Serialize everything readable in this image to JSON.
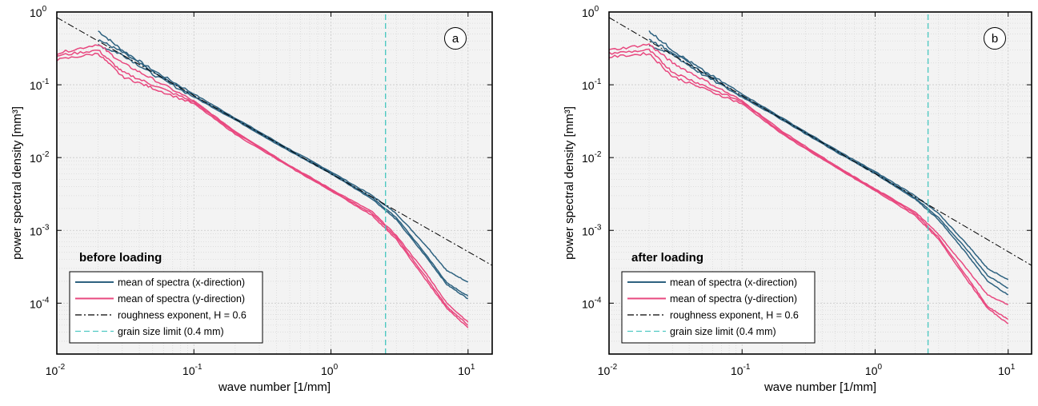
{
  "chart_data": [
    {
      "type": "line",
      "panel_label": "a",
      "condition_label": "before loading",
      "xlabel": "wave number [1/mm]",
      "ylabel": "power spectral density [mm³]",
      "xscale": "log",
      "yscale": "log",
      "xlim": [
        0.01,
        15
      ],
      "ylim": [
        2e-05,
        1
      ],
      "x_tick_labels": [
        {
          "value": 0.01,
          "base": "10",
          "exp": "-2"
        },
        {
          "value": 0.1,
          "base": "10",
          "exp": "-1"
        },
        {
          "value": 1,
          "base": "10",
          "exp": "0"
        },
        {
          "value": 10,
          "base": "10",
          "exp": "1"
        }
      ],
      "y_tick_labels": [
        {
          "value": 0.0001,
          "base": "10",
          "exp": "-4"
        },
        {
          "value": 0.001,
          "base": "10",
          "exp": "-3"
        },
        {
          "value": 0.01,
          "base": "10",
          "exp": "-2"
        },
        {
          "value": 0.1,
          "base": "10",
          "exp": "-1"
        },
        {
          "value": 1,
          "base": "10",
          "exp": "0"
        }
      ],
      "grid": true,
      "legend_position": "bottom-left",
      "legend": [
        {
          "label": "mean of spectra (x-direction)",
          "style": "solid",
          "color": "#2e6280"
        },
        {
          "label": "mean of spectra (y-direction)",
          "style": "solid",
          "color": "#e8487f"
        },
        {
          "label": "roughness exponent, H = 0.6",
          "style": "dash-dot",
          "color": "#000000"
        },
        {
          "label": "grain size limit (0.4 mm)",
          "style": "dashed",
          "color": "#4fc9c2"
        }
      ],
      "series": [
        {
          "group": "x-direction",
          "color": "#2e6280",
          "x": [
            0.02,
            0.03,
            0.05,
            0.1,
            0.2,
            0.5,
            1,
            2,
            3,
            5,
            7,
            10
          ],
          "y": [
            0.55,
            0.3,
            0.16,
            0.075,
            0.035,
            0.013,
            0.0064,
            0.003,
            0.0017,
            0.0006,
            0.00028,
            0.000195
          ]
        },
        {
          "group": "x-direction",
          "color": "#2e6280",
          "x": [
            0.02,
            0.03,
            0.05,
            0.1,
            0.2,
            0.5,
            1,
            2,
            3,
            5,
            7,
            10
          ],
          "y": [
            0.42,
            0.28,
            0.15,
            0.07,
            0.034,
            0.0125,
            0.0062,
            0.0028,
            0.0015,
            0.00045,
            0.00019,
            0.000125
          ]
        },
        {
          "group": "x-direction",
          "color": "#2e6280",
          "x": [
            0.02,
            0.03,
            0.05,
            0.1,
            0.2,
            0.5,
            1,
            2,
            3,
            5,
            7,
            10
          ],
          "y": [
            0.35,
            0.26,
            0.14,
            0.068,
            0.033,
            0.0122,
            0.006,
            0.0027,
            0.0014,
            0.00042,
            0.00018,
            0.000115
          ]
        },
        {
          "group": "y-direction",
          "color": "#e8487f",
          "x": [
            0.01,
            0.02,
            0.03,
            0.05,
            0.1,
            0.2,
            0.5,
            1,
            2,
            3,
            5,
            7,
            10
          ],
          "y": [
            0.27,
            0.36,
            0.2,
            0.12,
            0.06,
            0.023,
            0.0078,
            0.0037,
            0.0018,
            0.00085,
            0.00025,
            0.0001,
            5.5e-05
          ]
        },
        {
          "group": "y-direction",
          "color": "#e8487f",
          "x": [
            0.01,
            0.02,
            0.03,
            0.05,
            0.1,
            0.2,
            0.5,
            1,
            2,
            3,
            5,
            7,
            10
          ],
          "y": [
            0.25,
            0.3,
            0.15,
            0.1,
            0.058,
            0.022,
            0.0076,
            0.0036,
            0.0017,
            0.0008,
            0.00022,
            9e-05,
            5e-05
          ]
        },
        {
          "group": "y-direction",
          "color": "#e8487f",
          "x": [
            0.01,
            0.02,
            0.03,
            0.05,
            0.1,
            0.2,
            0.5,
            1,
            2,
            3,
            5,
            7,
            10
          ],
          "y": [
            0.22,
            0.27,
            0.13,
            0.09,
            0.055,
            0.021,
            0.0074,
            0.0035,
            0.0016,
            0.00075,
            0.0002,
            8.5e-05,
            4.6e-05
          ]
        },
        {
          "group": "roughness",
          "color": "#000000",
          "x": [
            0.01,
            15
          ],
          "y": [
            0.84,
            0.00033
          ]
        },
        {
          "group": "grain-size",
          "color": "#4fc9c2",
          "x": [
            2.5,
            2.5
          ],
          "y": [
            2e-05,
            1
          ]
        }
      ]
    },
    {
      "type": "line",
      "panel_label": "b",
      "condition_label": "after loading",
      "xlabel": "wave number [1/mm]",
      "ylabel": "power spectral density [mm³]",
      "xscale": "log",
      "yscale": "log",
      "xlim": [
        0.01,
        15
      ],
      "ylim": [
        2e-05,
        1
      ],
      "x_tick_labels": [
        {
          "value": 0.01,
          "base": "10",
          "exp": "-2"
        },
        {
          "value": 0.1,
          "base": "10",
          "exp": "-1"
        },
        {
          "value": 1,
          "base": "10",
          "exp": "0"
        },
        {
          "value": 10,
          "base": "10",
          "exp": "1"
        }
      ],
      "y_tick_labels": [
        {
          "value": 0.0001,
          "base": "10",
          "exp": "-4"
        },
        {
          "value": 0.001,
          "base": "10",
          "exp": "-3"
        },
        {
          "value": 0.01,
          "base": "10",
          "exp": "-2"
        },
        {
          "value": 0.1,
          "base": "10",
          "exp": "-1"
        },
        {
          "value": 1,
          "base": "10",
          "exp": "0"
        }
      ],
      "grid": true,
      "legend_position": "bottom-left",
      "legend": [
        {
          "label": "mean of spectra (x-direction)",
          "style": "solid",
          "color": "#2e6280"
        },
        {
          "label": "mean of spectra (y-direction)",
          "style": "solid",
          "color": "#e8487f"
        },
        {
          "label": "roughness exponent, H = 0.6",
          "style": "dash-dot",
          "color": "#000000"
        },
        {
          "label": "grain size limit (0.4 mm)",
          "style": "dashed",
          "color": "#4fc9c2"
        }
      ],
      "series": [
        {
          "group": "x-direction",
          "color": "#2e6280",
          "x": [
            0.02,
            0.03,
            0.05,
            0.1,
            0.2,
            0.5,
            1,
            2,
            3,
            5,
            7,
            10
          ],
          "y": [
            0.55,
            0.3,
            0.16,
            0.075,
            0.035,
            0.013,
            0.0064,
            0.003,
            0.0017,
            0.00062,
            0.0003,
            0.00021
          ]
        },
        {
          "group": "x-direction",
          "color": "#2e6280",
          "x": [
            0.02,
            0.03,
            0.05,
            0.1,
            0.2,
            0.5,
            1,
            2,
            3,
            5,
            7,
            10
          ],
          "y": [
            0.42,
            0.28,
            0.15,
            0.07,
            0.034,
            0.0125,
            0.0062,
            0.0028,
            0.0015,
            0.00052,
            0.00024,
            0.00016
          ]
        },
        {
          "group": "x-direction",
          "color": "#2e6280",
          "x": [
            0.02,
            0.03,
            0.05,
            0.1,
            0.2,
            0.5,
            1,
            2,
            3,
            5,
            7,
            10
          ],
          "y": [
            0.35,
            0.26,
            0.14,
            0.068,
            0.033,
            0.0122,
            0.006,
            0.0027,
            0.0014,
            0.00045,
            0.0002,
            0.00013
          ]
        },
        {
          "group": "y-direction",
          "color": "#e8487f",
          "x": [
            0.01,
            0.02,
            0.03,
            0.05,
            0.1,
            0.2,
            0.5,
            1,
            2,
            3,
            5,
            7,
            10
          ],
          "y": [
            0.3,
            0.36,
            0.2,
            0.12,
            0.06,
            0.023,
            0.0078,
            0.0037,
            0.0018,
            0.00088,
            0.00028,
            0.00013,
            9.5e-05
          ]
        },
        {
          "group": "y-direction",
          "color": "#e8487f",
          "x": [
            0.01,
            0.02,
            0.03,
            0.05,
            0.1,
            0.2,
            0.5,
            1,
            2,
            3,
            5,
            7,
            10
          ],
          "y": [
            0.27,
            0.3,
            0.15,
            0.1,
            0.058,
            0.022,
            0.0076,
            0.0036,
            0.0017,
            0.0008,
            0.00022,
            9e-05,
            6e-05
          ]
        },
        {
          "group": "y-direction",
          "color": "#e8487f",
          "x": [
            0.01,
            0.02,
            0.03,
            0.05,
            0.1,
            0.2,
            0.5,
            1,
            2,
            3,
            5,
            7,
            10
          ],
          "y": [
            0.24,
            0.27,
            0.13,
            0.09,
            0.055,
            0.021,
            0.0074,
            0.0035,
            0.0016,
            0.00075,
            0.0002,
            8.5e-05,
            5.2e-05
          ]
        },
        {
          "group": "roughness",
          "color": "#000000",
          "x": [
            0.01,
            15
          ],
          "y": [
            0.84,
            0.00033
          ]
        },
        {
          "group": "grain-size",
          "color": "#4fc9c2",
          "x": [
            2.5,
            2.5
          ],
          "y": [
            2e-05,
            1
          ]
        }
      ]
    }
  ]
}
